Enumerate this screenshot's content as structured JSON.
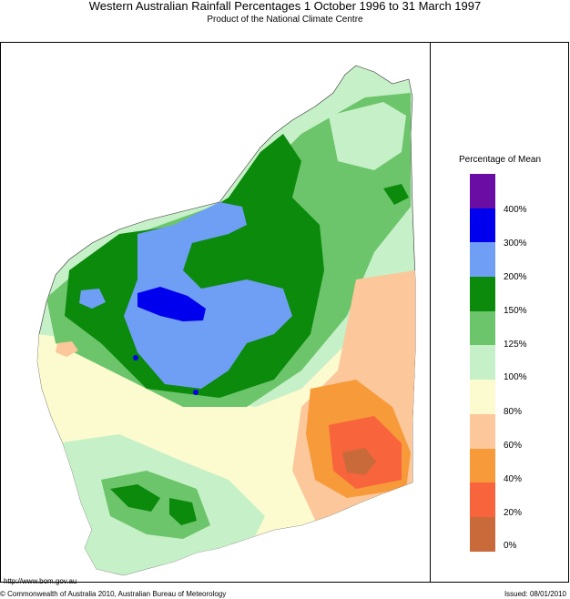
{
  "header": {
    "title": "Western Australian Rainfall Percentages 1 October 1996 to 31 March 1997",
    "subtitle": "Product of the National Climate Centre"
  },
  "legend": {
    "title": "Percentage of Mean",
    "bands": [
      {
        "color": "#6a0da5"
      },
      {
        "color": "#0000ee"
      },
      {
        "color": "#6f9ef5"
      },
      {
        "color": "#0b8a0b"
      },
      {
        "color": "#6cc46b"
      },
      {
        "color": "#c6f0c7"
      },
      {
        "color": "#fcfbcf"
      },
      {
        "color": "#fbc79b"
      },
      {
        "color": "#f79a3a"
      },
      {
        "color": "#f8643c"
      },
      {
        "color": "#c86a3a"
      }
    ],
    "ticks": [
      "400%",
      "300%",
      "200%",
      "150%",
      "125%",
      "100%",
      "80%",
      "60%",
      "40%",
      "20%",
      "0%"
    ]
  },
  "footer": {
    "url": "http://www.bom.gov.au",
    "copyright": "© Commonwealth of Australia 2010, Australian Bureau of Meteorology",
    "issued": "Issued: 08/01/2010"
  }
}
